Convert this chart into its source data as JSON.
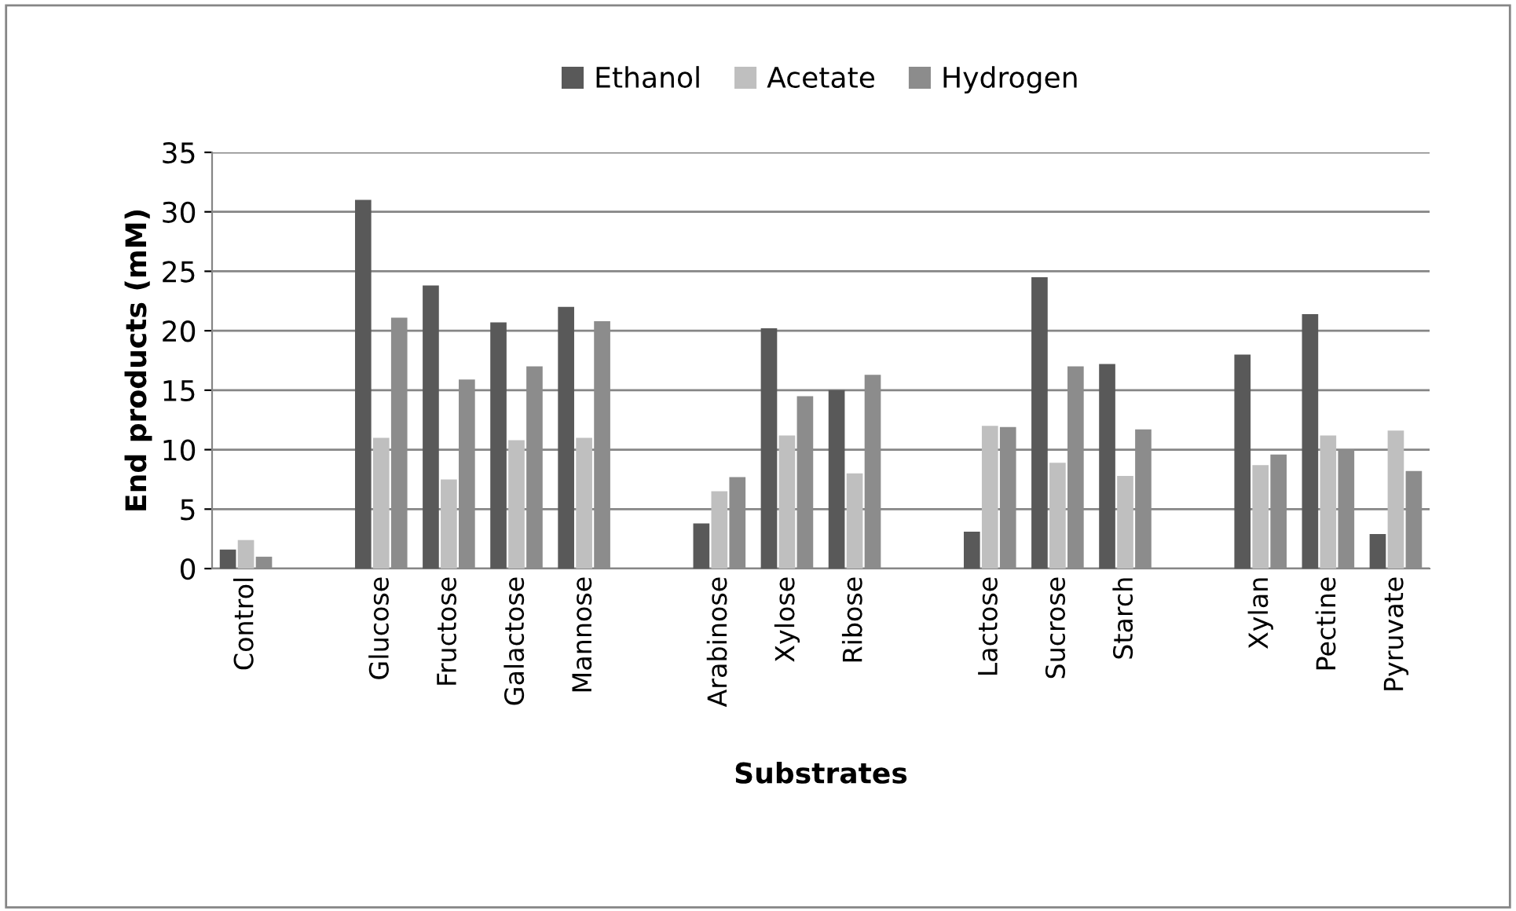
{
  "chart_data": {
    "type": "bar",
    "xlabel": "Substrates",
    "ylabel": "End products (mM)",
    "categories": [
      "Control",
      null,
      "Glucose",
      "Fructose",
      "Galactose",
      "Mannose",
      null,
      "Arabinose",
      "Xylose",
      "Ribose",
      null,
      "Lactose",
      "Sucrose",
      "Starch",
      null,
      "Xylan",
      "Pectine",
      "Pyruvate"
    ],
    "series": [
      {
        "name": "Ethanol",
        "color": "#595959",
        "values": [
          1.6,
          null,
          31.0,
          23.8,
          20.7,
          22.0,
          null,
          3.8,
          20.2,
          15.0,
          null,
          3.1,
          24.5,
          17.2,
          null,
          18.0,
          21.4,
          2.9
        ]
      },
      {
        "name": "Acetate",
        "color": "#bfbfbf",
        "values": [
          2.4,
          null,
          11.0,
          7.5,
          10.8,
          11.0,
          null,
          6.5,
          11.2,
          8.0,
          null,
          12.0,
          8.9,
          7.8,
          null,
          8.7,
          11.2,
          11.6
        ]
      },
      {
        "name": "Hydrogen",
        "color": "#8c8c8c",
        "values": [
          1.0,
          null,
          21.1,
          15.9,
          17.0,
          20.8,
          null,
          7.7,
          14.5,
          16.3,
          null,
          11.9,
          17.0,
          11.7,
          null,
          9.6,
          10.0,
          8.2
        ]
      }
    ],
    "ylim": [
      0,
      35
    ],
    "yticks": [
      0,
      5,
      10,
      15,
      20,
      25,
      30,
      35
    ],
    "grid": "y",
    "legend": "top"
  }
}
